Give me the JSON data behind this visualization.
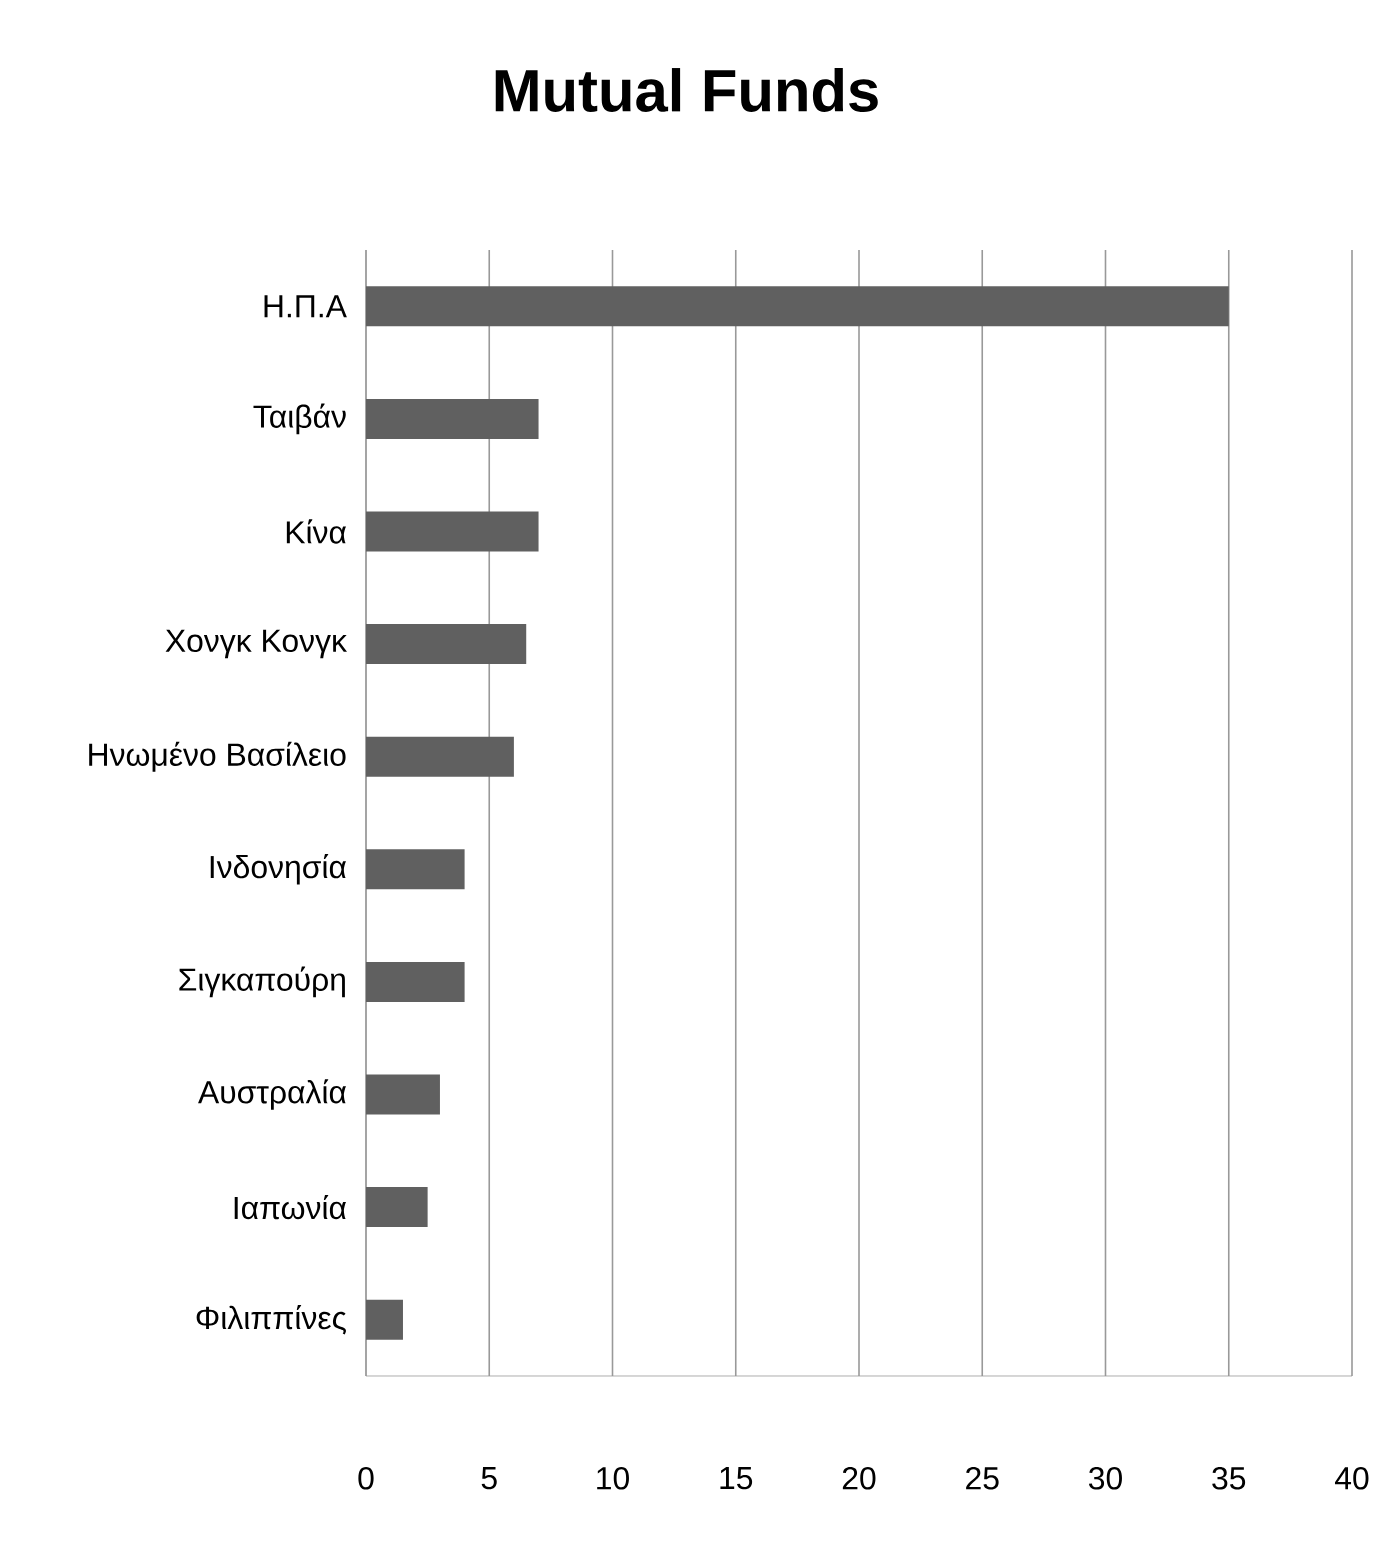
{
  "chart_data": {
    "type": "bar",
    "orientation": "horizontal",
    "title": "Mutual Funds",
    "categories": [
      "Η.Π.Α",
      "Ταιβάν",
      "Κίνα",
      "Χονγκ Κονγκ",
      "Ηνωμένο Βασίλειο",
      "Ινδονησία",
      "Σιγκαπούρη",
      "Αυστραλία",
      "Ιαπωνία",
      "Φιλιππίνες"
    ],
    "values": [
      35,
      7,
      7,
      6.5,
      6,
      4,
      4,
      3,
      2.5,
      1.5
    ],
    "color": "#606060",
    "xlim": [
      0,
      40
    ],
    "xticks": [
      0,
      5,
      10,
      15,
      20,
      25,
      30,
      35,
      40
    ],
    "grid": "x"
  }
}
